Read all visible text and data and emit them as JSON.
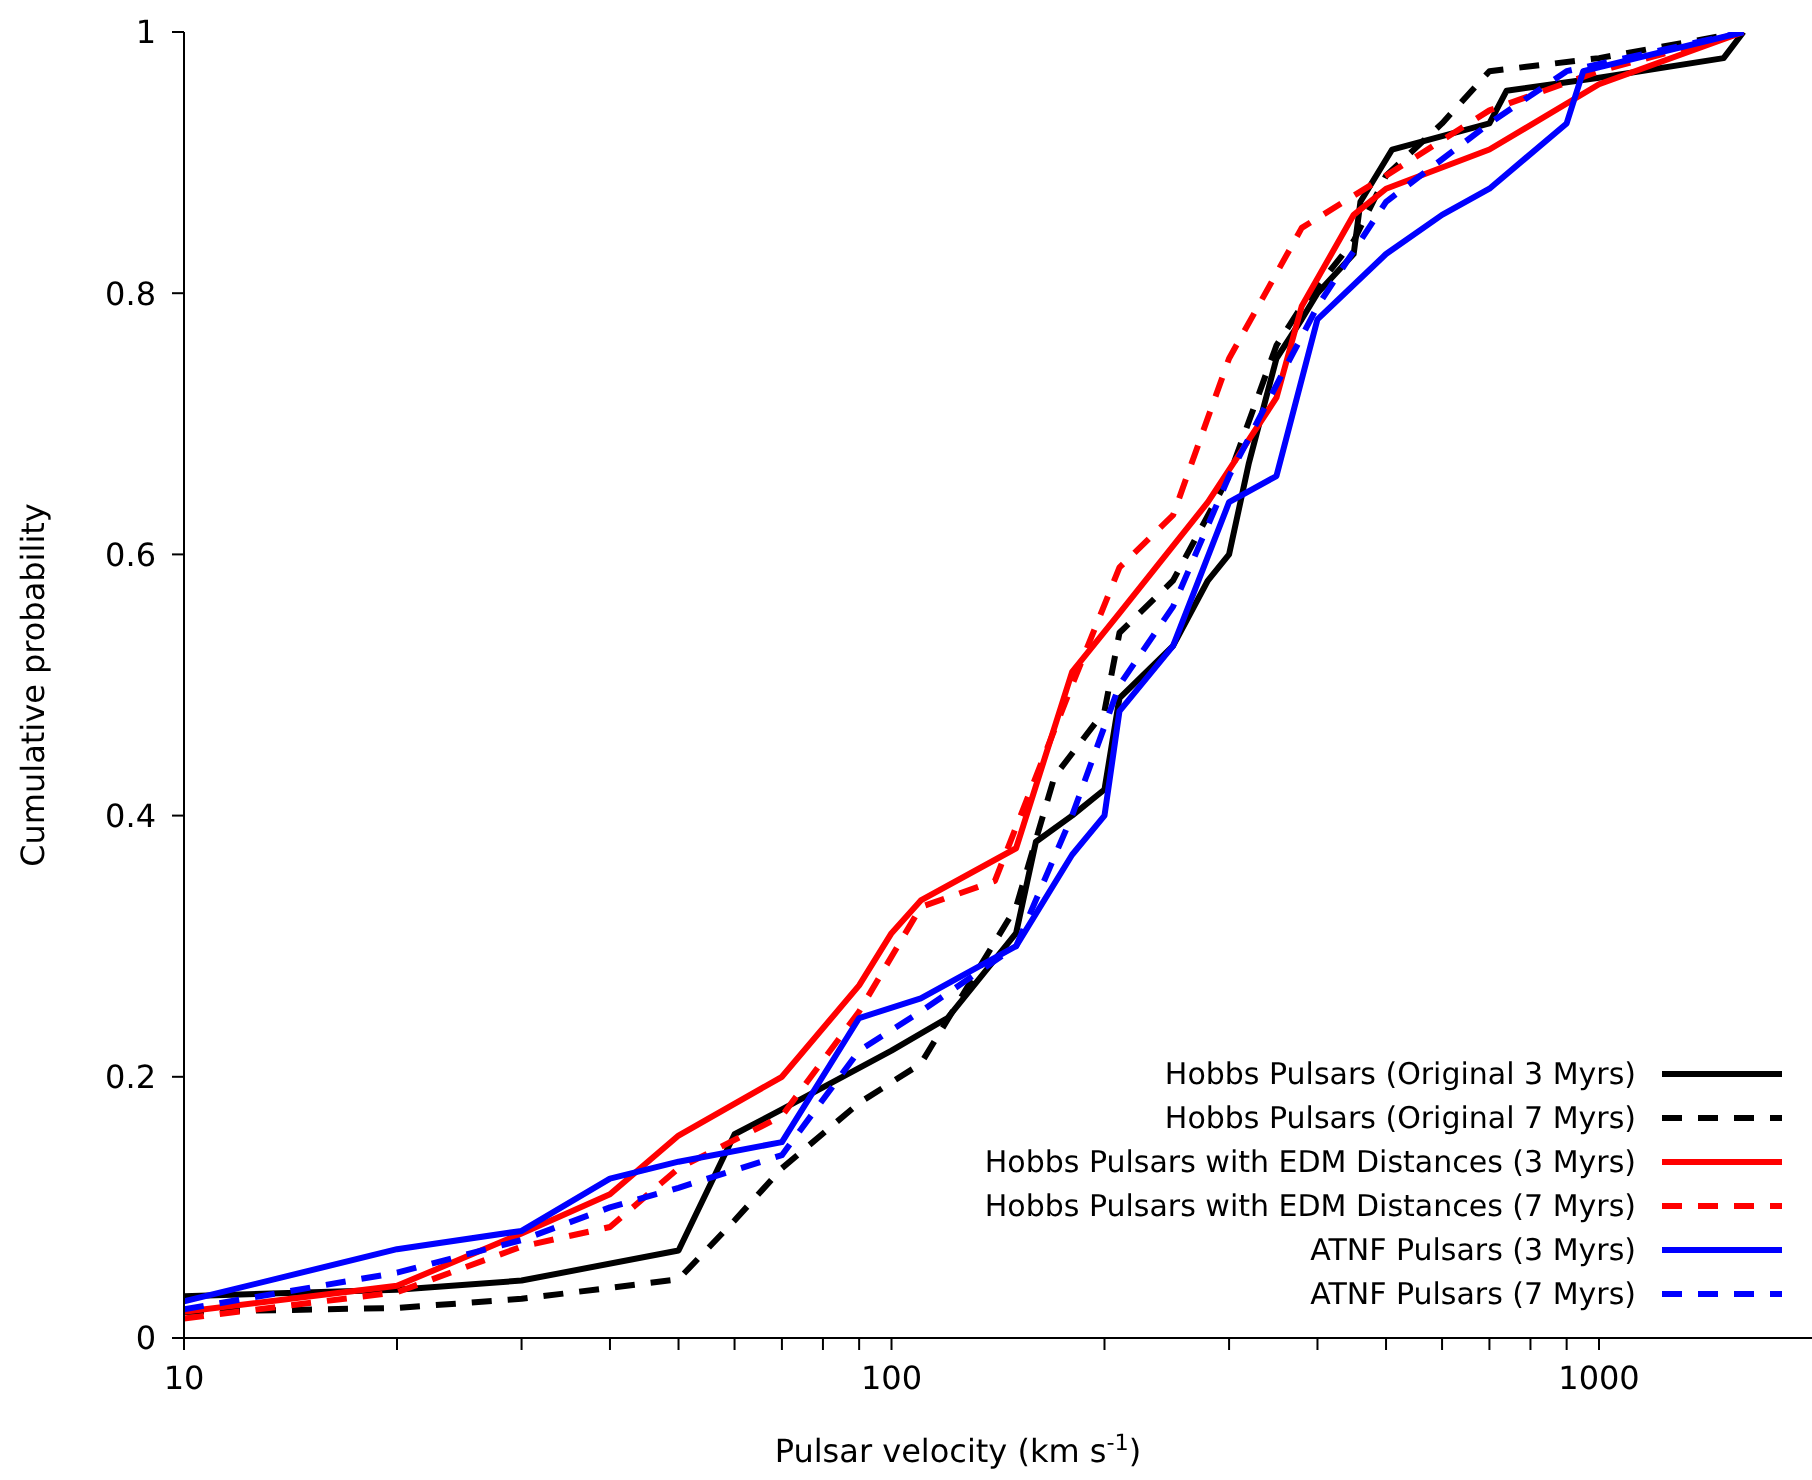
{
  "chart_data": {
    "type": "line",
    "xlabel": "Pulsar velocity (km s$^{-1}$)",
    "ylabel": "Cumulative probability",
    "log": "x",
    "xlim": [
      10,
      2000
    ],
    "ylim": [
      0,
      1
    ],
    "xticks": [
      10,
      {
        "value": 20,
        "label": null
      },
      {
        "value": 30,
        "label": null
      },
      {
        "value": 40,
        "label": null
      },
      {
        "value": 50,
        "label": null
      },
      {
        "value": 60,
        "label": null
      },
      {
        "value": 70,
        "label": null
      },
      {
        "value": 80,
        "label": null
      },
      {
        "value": 90,
        "label": null
      },
      100,
      {
        "value": 200,
        "label": null
      },
      {
        "value": 300,
        "label": null
      },
      {
        "value": 400,
        "label": null
      },
      {
        "value": 500,
        "label": null
      },
      {
        "value": 600,
        "label": null
      },
      {
        "value": 700,
        "label": null
      },
      {
        "value": 800,
        "label": null
      },
      {
        "value": 900,
        "label": null
      },
      1000
    ],
    "yticks": [
      0,
      0.2,
      0.4,
      0.6,
      0.8,
      1
    ],
    "grid": false,
    "legend": "bottom right",
    "marker": "none",
    "series": [
      {
        "name": "Hobbs Pulsars (Original 3 Myrs)",
        "color": "#000000",
        "line_style": "solid",
        "x": [
          10,
          20,
          30,
          50,
          60,
          70,
          100,
          120,
          150,
          160,
          180,
          200,
          210,
          250,
          280,
          300,
          320,
          350,
          380,
          400,
          450,
          460,
          510,
          700,
          740,
          1000,
          1500,
          1600
        ],
        "values": [
          0.032,
          0.037,
          0.044,
          0.067,
          0.156,
          0.175,
          0.22,
          0.245,
          0.31,
          0.38,
          0.4,
          0.42,
          0.49,
          0.53,
          0.58,
          0.6,
          0.67,
          0.75,
          0.78,
          0.8,
          0.83,
          0.87,
          0.91,
          0.93,
          0.955,
          0.965,
          0.98,
          1
        ]
      },
      {
        "name": "Hobbs Pulsars (Original 7 Myrs)",
        "color": "#000000",
        "line_style": "dashed",
        "x": [
          10,
          20,
          30,
          50,
          60,
          70,
          90,
          110,
          150,
          170,
          200,
          210,
          250,
          300,
          350,
          380,
          450,
          500,
          600,
          700,
          1000,
          1600
        ],
        "values": [
          0.02,
          0.023,
          0.03,
          0.045,
          0.09,
          0.13,
          0.18,
          0.21,
          0.33,
          0.43,
          0.48,
          0.54,
          0.58,
          0.66,
          0.76,
          0.79,
          0.84,
          0.89,
          0.93,
          0.97,
          0.98,
          1
        ]
      },
      {
        "name": "Hobbs Pulsars with EDM Distances (3 Myrs)",
        "color": "#ff0000",
        "line_style": "solid",
        "x": [
          10,
          20,
          30,
          40,
          50,
          70,
          90,
          100,
          110,
          150,
          180,
          210,
          280,
          350,
          380,
          450,
          500,
          700,
          1000,
          1600
        ],
        "values": [
          0.02,
          0.04,
          0.08,
          0.11,
          0.155,
          0.2,
          0.27,
          0.31,
          0.335,
          0.375,
          0.51,
          0.555,
          0.64,
          0.72,
          0.79,
          0.86,
          0.88,
          0.91,
          0.96,
          1
        ]
      },
      {
        "name": "Hobbs Pulsars with EDM Distances (7 Myrs)",
        "color": "#ff0000",
        "line_style": "dashed",
        "x": [
          10,
          20,
          30,
          40,
          50,
          70,
          90,
          110,
          140,
          180,
          210,
          250,
          300,
          380,
          500,
          700,
          1000,
          1600
        ],
        "values": [
          0.015,
          0.035,
          0.07,
          0.085,
          0.13,
          0.17,
          0.25,
          0.33,
          0.35,
          0.5,
          0.59,
          0.63,
          0.75,
          0.85,
          0.89,
          0.94,
          0.97,
          1
        ]
      },
      {
        "name": "ATNF Pulsars (3 Myrs)",
        "color": "#0000ff",
        "line_style": "solid",
        "x": [
          10,
          20,
          30,
          40,
          50,
          70,
          90,
          110,
          150,
          180,
          200,
          210,
          250,
          300,
          350,
          400,
          500,
          600,
          700,
          900,
          950,
          1600
        ],
        "values": [
          0.028,
          0.068,
          0.082,
          0.122,
          0.135,
          0.15,
          0.245,
          0.26,
          0.3,
          0.37,
          0.4,
          0.48,
          0.53,
          0.64,
          0.66,
          0.78,
          0.83,
          0.86,
          0.88,
          0.93,
          0.97,
          1
        ]
      },
      {
        "name": "ATNF Pulsars (7 Myrs)",
        "color": "#0000ff",
        "line_style": "dashed",
        "x": [
          10,
          20,
          30,
          40,
          50,
          70,
          90,
          110,
          150,
          180,
          210,
          250,
          300,
          400,
          500,
          700,
          900,
          1600
        ],
        "values": [
          0.022,
          0.05,
          0.075,
          0.1,
          0.115,
          0.14,
          0.22,
          0.25,
          0.3,
          0.4,
          0.5,
          0.56,
          0.66,
          0.79,
          0.87,
          0.93,
          0.97,
          1
        ]
      }
    ]
  }
}
